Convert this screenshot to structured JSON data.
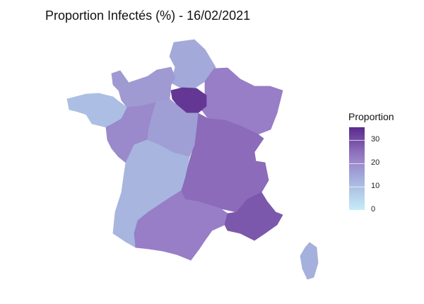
{
  "title": "Proportion Infectés (%) - 16/02/2021",
  "legend": {
    "title": "Proportion",
    "ticks": [
      "30",
      "20",
      "10",
      "0"
    ],
    "range": [
      0,
      35
    ],
    "color_low": "#c6ecf8",
    "color_high": "#5a2a8c"
  },
  "regions": [
    {
      "value": 14
    },
    {
      "value": 17
    },
    {
      "value": 22
    },
    {
      "value": 33
    },
    {
      "value": 25
    },
    {
      "value": 10
    },
    {
      "value": 16
    },
    {
      "value": 20
    },
    {
      "value": 12
    },
    {
      "value": 22
    },
    {
      "value": 14
    },
    {
      "value": 28
    },
    {
      "value": 13
    }
  ]
}
